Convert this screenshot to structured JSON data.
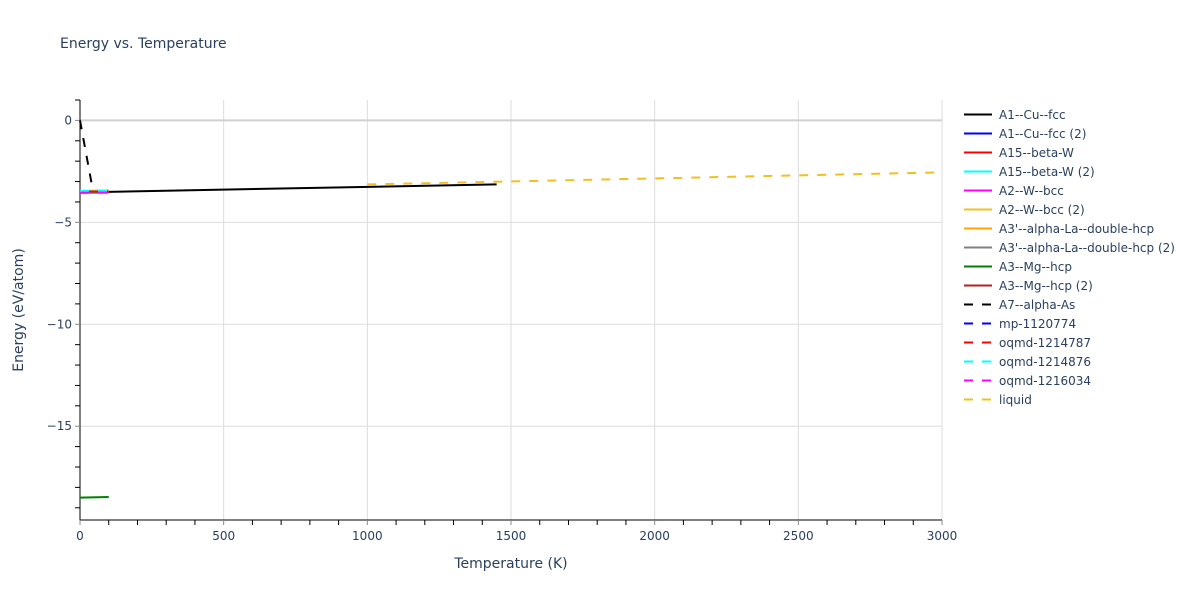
{
  "chart_data": {
    "type": "line",
    "title": "Energy vs. Temperature",
    "xlabel": "Temperature (K)",
    "ylabel": "Energy (eV/atom)",
    "xlim": [
      0,
      3000
    ],
    "ylim": [
      -19.6,
      1.0
    ],
    "x_ticks": [
      0,
      500,
      1000,
      1500,
      2000,
      2500,
      3000
    ],
    "y_ticks": [
      0,
      -5,
      -10,
      -15
    ],
    "grid": true,
    "legend_position": "right",
    "series": [
      {
        "name": "A1--Cu--fcc",
        "color": "#000000",
        "dash": "solid",
        "x": [
          0,
          1450
        ],
        "y": [
          -3.53,
          -3.14
        ]
      },
      {
        "name": "A1--Cu--fcc (2)",
        "color": "#0000ff",
        "dash": "solid",
        "x": [
          0,
          100
        ],
        "y": [
          -3.5,
          -3.48
        ]
      },
      {
        "name": "A15--beta-W",
        "color": "#ff0000",
        "dash": "solid",
        "x": [
          0,
          100
        ],
        "y": [
          -3.47,
          -3.45
        ]
      },
      {
        "name": "A15--beta-W (2)",
        "color": "#00ffff",
        "dash": "solid",
        "x": [
          0,
          100
        ],
        "y": [
          -3.46,
          -3.44
        ]
      },
      {
        "name": "A2--W--bcc",
        "color": "#ff00ff",
        "dash": "solid",
        "x": [
          0,
          100
        ],
        "y": [
          -3.55,
          -3.54
        ]
      },
      {
        "name": "A2--W--bcc (2)",
        "color": "#f0c020",
        "dash": "solid",
        "x": [
          0,
          100
        ],
        "y": [
          -3.49,
          -3.47
        ]
      },
      {
        "name": "A3'--alpha-La--double-hcp",
        "color": "#ffa500",
        "dash": "solid",
        "x": [
          0,
          100
        ],
        "y": [
          -3.48,
          -3.46
        ]
      },
      {
        "name": "A3'--alpha-La--double-hcp (2)",
        "color": "#808080",
        "dash": "solid",
        "x": [
          0,
          100
        ],
        "y": [
          -3.51,
          -3.5
        ]
      },
      {
        "name": "A3--Mg--hcp",
        "color": "#008000",
        "dash": "solid",
        "x": [
          0,
          100
        ],
        "y": [
          -18.5,
          -18.47
        ]
      },
      {
        "name": "A3--Mg--hcp (2)",
        "color": "#b22222",
        "dash": "solid",
        "x": [
          0,
          100
        ],
        "y": [
          -3.5,
          -3.49
        ]
      },
      {
        "name": "A7--alpha-As",
        "color": "#000000",
        "dash": "dash",
        "x": [
          0,
          45
        ],
        "y": [
          0,
          -3.45
        ]
      },
      {
        "name": "mp-1120774",
        "color": "#0000ff",
        "dash": "dash",
        "x": [
          0,
          100
        ],
        "y": [
          -3.5,
          -3.49
        ]
      },
      {
        "name": "oqmd-1214787",
        "color": "#ff0000",
        "dash": "dash",
        "x": [
          0,
          100
        ],
        "y": [
          -3.47,
          -3.46
        ]
      },
      {
        "name": "oqmd-1214876",
        "color": "#00ffff",
        "dash": "dash",
        "x": [
          0,
          100
        ],
        "y": [
          -3.46,
          -3.45
        ]
      },
      {
        "name": "oqmd-1216034",
        "color": "#ff00ff",
        "dash": "dash",
        "x": [
          0,
          100
        ],
        "y": [
          -3.55,
          -3.54
        ]
      },
      {
        "name": "liquid",
        "color": "#f0c020",
        "dash": "dash",
        "x": [
          1000,
          3000
        ],
        "y": [
          -3.14,
          -2.55
        ]
      }
    ]
  }
}
